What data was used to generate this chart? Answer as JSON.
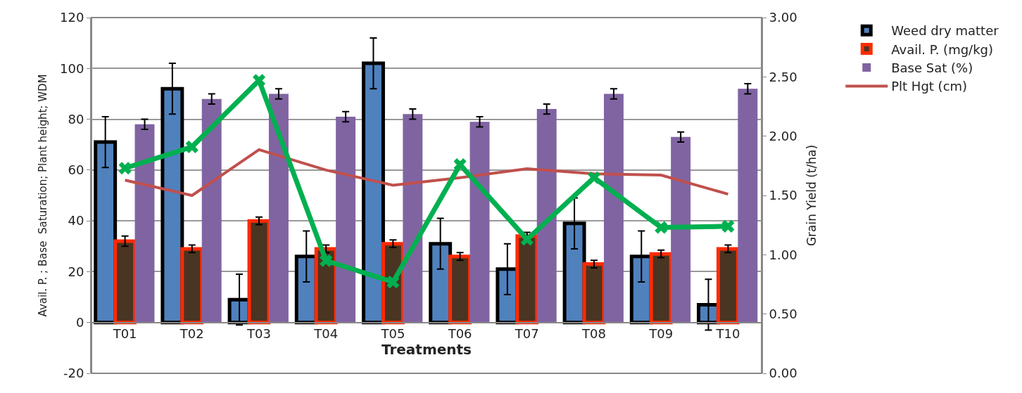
{
  "chart_data": {
    "type": "bar",
    "categories": [
      "T01",
      "T02",
      "T03",
      "T04",
      "T05",
      "T06",
      "T07",
      "T08",
      "T09",
      "T10"
    ],
    "xlabel": "Treatments",
    "ylabel": "Avail. P. ; Base  Saturation; Plant height; WDM",
    "y2label": "Grain Yield (t/ha)",
    "series": [
      {
        "name": "Weed dry matter",
        "color": "#4f81bd",
        "values": [
          71,
          92,
          9,
          26,
          102,
          31,
          21,
          39,
          26,
          7
        ],
        "errors": [
          10,
          10,
          10,
          10,
          10,
          10,
          10,
          10,
          10,
          10
        ]
      },
      {
        "name": "Avail. P. (mg/kg)",
        "color": "#4a3422",
        "values": [
          32,
          29,
          40,
          29,
          31,
          26,
          34,
          23,
          27,
          29
        ],
        "errors": [
          2,
          1.5,
          1.5,
          1.5,
          1.5,
          1.5,
          1.5,
          1.5,
          1.5,
          1.5
        ]
      },
      {
        "name": "Base Sat (%)",
        "color": "#8064a2",
        "values": [
          78,
          88,
          90,
          81,
          82,
          79,
          84,
          90,
          73,
          92
        ],
        "errors": [
          2,
          2,
          2,
          2,
          2,
          2,
          2,
          2,
          2,
          2
        ]
      },
      {
        "name": "Plt Hgt (cm)",
        "type": "line",
        "color": "#c0504d",
        "values": [
          56,
          50,
          68,
          60,
          54,
          57,
          60.5,
          58.5,
          58,
          50.5
        ]
      },
      {
        "type": "line",
        "axis": "y2",
        "marker": "cross",
        "color": "#00b050",
        "values": [
          1.73,
          1.91,
          2.47,
          0.95,
          0.77,
          1.76,
          1.13,
          1.65,
          1.23,
          1.24
        ]
      }
    ],
    "ylim": [
      -20,
      120
    ],
    "yticks": [
      -20,
      0,
      20,
      40,
      60,
      80,
      100,
      120
    ],
    "y2lim": [
      0,
      3
    ],
    "y2ticks": [
      {
        "value": 0,
        "label": "0.00"
      },
      {
        "value": 0.5,
        "label": "0.50"
      },
      {
        "value": 1,
        "label": "1.00"
      },
      {
        "value": 1.5,
        "label": "1.50"
      },
      {
        "value": 2,
        "label": "2.00"
      },
      {
        "value": 2.5,
        "label": "2.50"
      },
      {
        "value": 3,
        "label": "3.00"
      }
    ],
    "grid": "y",
    "legend": "right"
  }
}
